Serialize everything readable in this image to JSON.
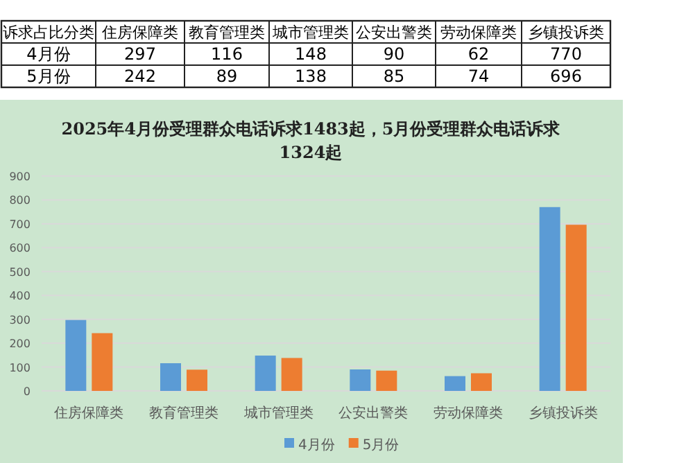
{
  "chart_data": [
    {
      "type": "heatmap",
      "categories": [
        "住房保障类",
        "教育管理类",
        "城市管理类",
        "公安出警类",
        "劳动保障类",
        "乡镇投诉类"
      ],
      "y_categories": [
        "4月份",
        "5月份"
      ],
      "cells": [
        [
          297,
          116,
          148,
          90,
          62,
          770
        ],
        [
          242,
          89,
          138,
          85,
          74,
          696
        ]
      ],
      "data_labels": true,
      "annotations": [
        "诉求占比分类"
      ]
    },
    {
      "type": "bar",
      "title": "2025年4月份受理群众电话诉求1483起，5月份受理群众电话诉求1324起",
      "categories": [
        "住房保障类",
        "教育管理类",
        "城市管理类",
        "公安出警类",
        "劳动保障类",
        "乡镇投诉类"
      ],
      "series": [
        {
          "name": "4月份",
          "color": "#5b9bd5",
          "values": [
            297,
            116,
            148,
            90,
            62,
            770
          ]
        },
        {
          "name": "5月份",
          "color": "#ed7d31",
          "values": [
            242,
            89,
            138,
            85,
            74,
            696
          ]
        }
      ],
      "ylim": [
        0,
        900
      ],
      "yticks": [
        0,
        100,
        200,
        300,
        400,
        500,
        600,
        700,
        800,
        900
      ],
      "grid": "y",
      "legend": "bottom"
    }
  ]
}
